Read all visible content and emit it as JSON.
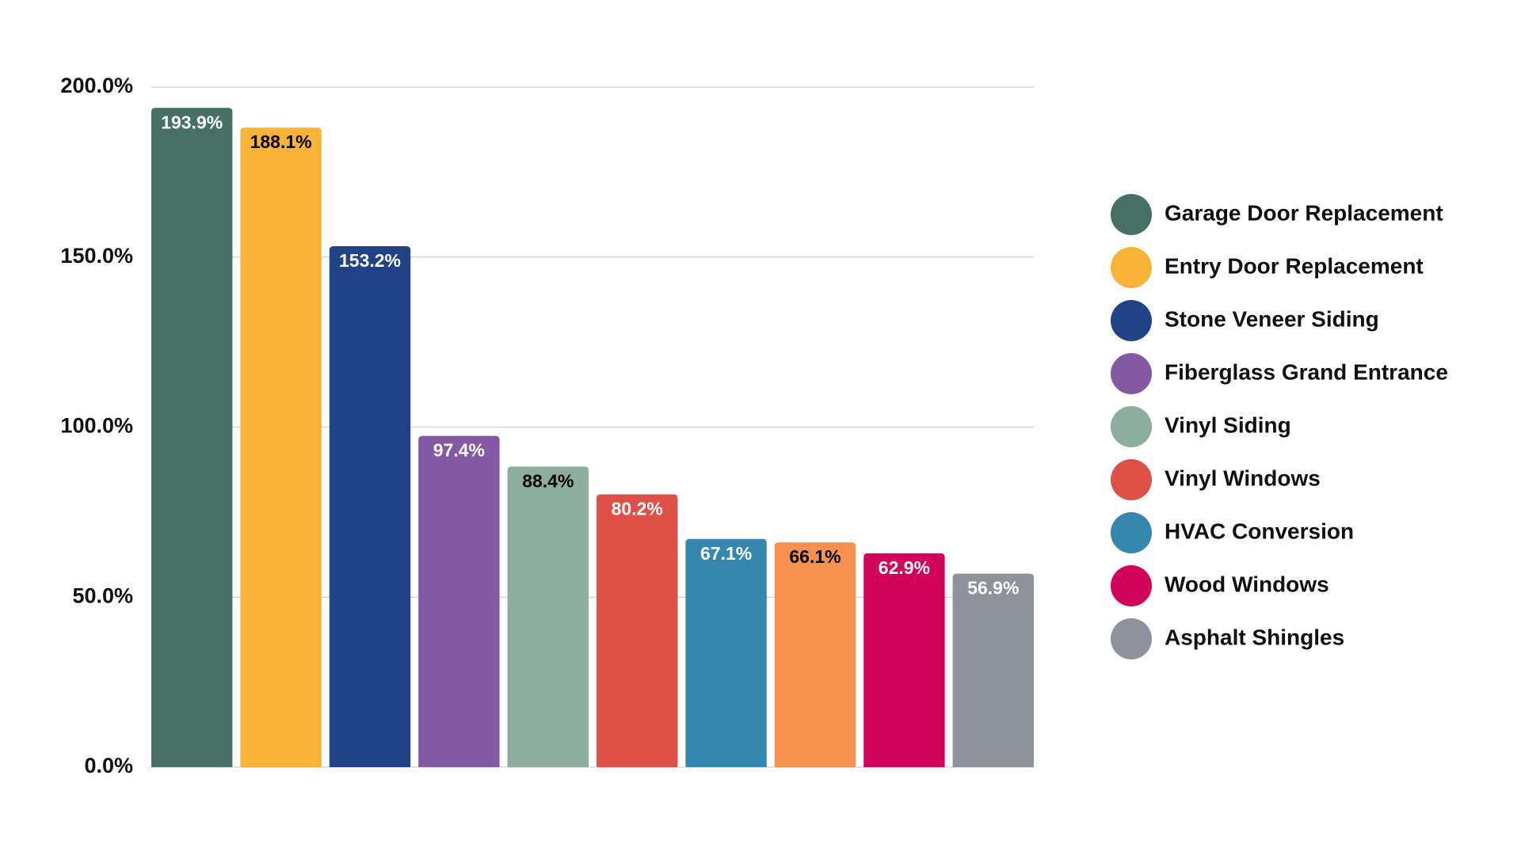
{
  "chart_data": {
    "type": "bar",
    "categories": [
      "Garage Door Replacement",
      "Entry Door Replacement",
      "Stone Veneer Siding",
      "Fiberglass Grand Entrance",
      "Vinyl Siding",
      "Vinyl Windows",
      "HVAC Conversion",
      null,
      "Wood Windows",
      "Asphalt Shingles"
    ],
    "values": [
      193.9,
      188.1,
      153.2,
      97.4,
      88.4,
      80.2,
      67.1,
      66.1,
      62.9,
      56.9
    ],
    "value_labels": [
      "193.9%",
      "188.1%",
      "153.2%",
      "97.4%",
      "88.4%",
      "80.2%",
      "67.1%",
      "66.1%",
      "62.9%",
      "56.9%"
    ],
    "colors": [
      "#476f65",
      "#f9b437",
      "#224287",
      "#8459a3",
      "#8dae9f",
      "#df5046",
      "#3587b0",
      "#f6914f",
      "#d1035b",
      "#8d929d"
    ],
    "label_colors": [
      "#ffffff",
      "#000000",
      "#ffffff",
      "#ffffff",
      "#000000",
      "#ffffff",
      "#ffffff",
      "#000000",
      "#ffffff",
      "#ffffff"
    ],
    "ylim": [
      0,
      200
    ],
    "yticks": [
      {
        "value": 0,
        "label": "0.0%"
      },
      {
        "value": 50,
        "label": "50.0%"
      },
      {
        "value": 100,
        "label": "100.0%"
      },
      {
        "value": 150,
        "label": "150.0%"
      },
      {
        "value": 200,
        "label": "200.0%"
      }
    ],
    "grid": true,
    "legend": "right"
  }
}
